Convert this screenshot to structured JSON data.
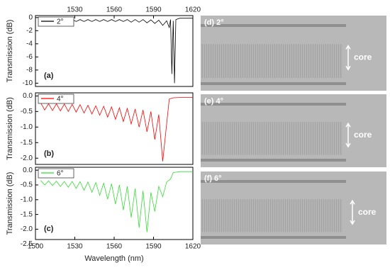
{
  "chart_data": [
    {
      "type": "line",
      "panel_label": "(a)",
      "ylabel": "Transmission (dB)",
      "xlim": [
        1500,
        1620
      ],
      "xticks": [
        1530,
        1560,
        1590,
        1620
      ],
      "ylim": [
        -10.5,
        0.3
      ],
      "yticks": [
        0,
        -2,
        -4,
        -6,
        -8,
        -10
      ],
      "x": [
        1504,
        1507,
        1510,
        1513,
        1516,
        1519,
        1522,
        1525,
        1528,
        1531,
        1534,
        1537,
        1540,
        1543,
        1546,
        1549,
        1552,
        1555,
        1558,
        1561,
        1564,
        1567,
        1570,
        1573,
        1576,
        1579,
        1582,
        1585,
        1588,
        1591,
        1594,
        1597,
        1600,
        1602,
        1603,
        1604,
        1605,
        1606,
        1607,
        1610,
        1620
      ],
      "series": [
        {
          "name": "2°",
          "color": "#000000",
          "values": [
            -0.3,
            -0.6,
            -0.3,
            -0.6,
            -0.3,
            -0.6,
            -0.3,
            -0.6,
            -0.3,
            -0.6,
            -0.3,
            -0.6,
            -0.3,
            -0.6,
            -0.3,
            -0.6,
            -0.3,
            -0.6,
            -0.3,
            -0.6,
            -0.3,
            -0.6,
            -0.3,
            -0.7,
            -0.3,
            -0.7,
            -0.3,
            -0.8,
            -0.35,
            -0.9,
            -0.4,
            -1.2,
            -0.5,
            -1.5,
            -0.3,
            -8.6,
            -0.5,
            -10,
            -0.3,
            -0.1,
            -0.1
          ]
        }
      ]
    },
    {
      "type": "line",
      "panel_label": "(b)",
      "ylabel": "Transmission (dB)",
      "xlim": [
        1500,
        1620
      ],
      "ylim": [
        -2.2,
        0.1
      ],
      "yticks": [
        {
          "value": 0,
          "label": "0.0"
        },
        -0.5,
        {
          "value": -1,
          "label": "-1.0"
        },
        -1.5,
        {
          "value": -2,
          "label": "-2.0"
        }
      ],
      "x": [
        1504,
        1507,
        1510,
        1513,
        1516,
        1519,
        1522,
        1525,
        1528,
        1531,
        1534,
        1537,
        1540,
        1543,
        1546,
        1549,
        1552,
        1555,
        1558,
        1561,
        1564,
        1567,
        1570,
        1573,
        1576,
        1579,
        1582,
        1585,
        1588,
        1591,
        1594,
        1597,
        1600,
        1602,
        1605,
        1610,
        1620
      ],
      "series": [
        {
          "name": "4°",
          "color": "#ff0000",
          "values": [
            -0.22,
            -0.45,
            -0.25,
            -0.47,
            -0.25,
            -0.48,
            -0.26,
            -0.5,
            -0.27,
            -0.52,
            -0.28,
            -0.55,
            -0.3,
            -0.58,
            -0.32,
            -0.62,
            -0.33,
            -0.68,
            -0.35,
            -0.75,
            -0.38,
            -0.82,
            -0.4,
            -0.9,
            -0.42,
            -1,
            -0.45,
            -1.15,
            -0.5,
            -1.4,
            -0.6,
            -2.1,
            -0.9,
            -0.1,
            -0.06,
            -0.05,
            -0.05
          ]
        }
      ]
    },
    {
      "type": "line",
      "panel_label": "(c)",
      "ylabel": "Transmission (dB)",
      "xlabel": "Wavelength (nm)",
      "xlim": [
        1500,
        1620
      ],
      "xticks": [
        1500,
        1530,
        1560,
        1590,
        1620
      ],
      "ylim": [
        -2.35,
        0.1
      ],
      "yticks": [
        {
          "value": 0,
          "label": "0.0"
        },
        -0.5,
        {
          "value": -1,
          "label": "-1.0"
        },
        -1.5,
        {
          "value": -2,
          "label": "-2.0"
        },
        -2.5
      ],
      "x": [
        1504,
        1507,
        1510,
        1513,
        1516,
        1519,
        1522,
        1525,
        1528,
        1531,
        1534,
        1537,
        1540,
        1543,
        1546,
        1549,
        1552,
        1555,
        1558,
        1561,
        1564,
        1567,
        1570,
        1573,
        1576,
        1579,
        1582,
        1585,
        1588,
        1591,
        1594,
        1597,
        1600,
        1603,
        1605,
        1610,
        1620
      ],
      "series": [
        {
          "name": "6°",
          "color": "#33dd33",
          "values": [
            -0.35,
            -0.5,
            -0.36,
            -0.52,
            -0.37,
            -0.55,
            -0.38,
            -0.58,
            -0.38,
            -0.62,
            -0.39,
            -0.68,
            -0.4,
            -0.75,
            -0.42,
            -0.85,
            -0.44,
            -0.98,
            -0.46,
            -1.15,
            -0.5,
            -1.35,
            -0.55,
            -1.6,
            -0.62,
            -1.95,
            -0.7,
            -2.1,
            -0.75,
            -1.4,
            -0.55,
            -0.9,
            -0.4,
            -0.3,
            -0.08,
            -0.05,
            -0.05
          ]
        }
      ]
    }
  ],
  "images": [
    {
      "label": "(d) 2°",
      "annotation": "core"
    },
    {
      "label": "(e) 4°",
      "annotation": "core"
    },
    {
      "label": "(f) 6°",
      "annotation": "core"
    }
  ]
}
